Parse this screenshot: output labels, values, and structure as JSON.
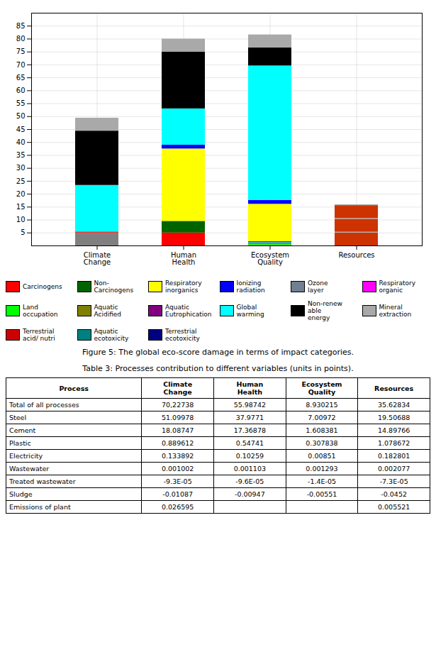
{
  "chart_data": {
    "type": "bar",
    "stacked": true,
    "categories": [
      "Climate\nChange",
      "Human\nHealth",
      "Ecosystem\nQuality",
      "Resources"
    ],
    "stacks": [
      [
        {
          "value": 5.0,
          "color": "#808080"
        },
        {
          "value": 0.4,
          "color": "#FF0000"
        },
        {
          "value": 18.0,
          "color": "#00FFFF"
        },
        {
          "value": 21.0,
          "color": "#000000"
        },
        {
          "value": 5.0,
          "color": "#A9A9A9"
        }
      ],
      [
        {
          "value": 5.0,
          "color": "#FF0000"
        },
        {
          "value": 4.5,
          "color": "#006400"
        },
        {
          "value": 28.0,
          "color": "#FFFF00"
        },
        {
          "value": 1.5,
          "color": "#0000FF"
        },
        {
          "value": 14.0,
          "color": "#00FFFF"
        },
        {
          "value": 22.0,
          "color": "#000000"
        },
        {
          "value": 5.0,
          "color": "#A9A9A9"
        }
      ],
      [
        {
          "value": 0.5,
          "color": "#00FF00"
        },
        {
          "value": 0.3,
          "color": "#808000"
        },
        {
          "value": 0.2,
          "color": "#800080"
        },
        {
          "value": 0.3,
          "color": "#00FFFF"
        },
        {
          "value": 0.3,
          "color": "#000000"
        },
        {
          "value": 14.5,
          "color": "#FFFF00"
        },
        {
          "value": 1.5,
          "color": "#0000FF"
        },
        {
          "value": 52.0,
          "color": "#00FFFF"
        },
        {
          "value": 7.0,
          "color": "#000000"
        },
        {
          "value": 5.0,
          "color": "#A9A9A9"
        }
      ],
      [
        {
          "value": 5.0,
          "color": "#CC3300"
        },
        {
          "value": 0.3,
          "color": "#A9A9A9"
        },
        {
          "value": 5.0,
          "color": "#CC3300"
        },
        {
          "value": 0.3,
          "color": "#A9A9A9"
        },
        {
          "value": 5.0,
          "color": "#CC3300"
        },
        {
          "value": 0.3,
          "color": "#A9A9A9"
        }
      ]
    ],
    "ylim": [
      0,
      90
    ],
    "yticks": [
      5,
      10,
      15,
      20,
      25,
      30,
      35,
      40,
      45,
      50,
      55,
      60,
      65,
      70,
      75,
      80,
      85
    ],
    "grid": true,
    "legend": "bottom",
    "legend_items": [
      {
        "label": "Carcinogens",
        "color": "#FF0000"
      },
      {
        "label": "Non-Carcinogens",
        "color": "#006400"
      },
      {
        "label": "Respiratory\ninorganics",
        "color": "#FFFF00"
      },
      {
        "label": "Ionizing\nradiation",
        "color": "#0000FF"
      },
      {
        "label": "Ozone\nlayer",
        "color": "#708090"
      },
      {
        "label": "Respiratory\norganic",
        "color": "#FF00FF"
      },
      {
        "label": "Land\noccupation",
        "color": "#00FF00"
      },
      {
        "label": "Aquatic\nAcidified",
        "color": "#808000"
      },
      {
        "label": "Aquatic\nEutrophication",
        "color": "#800080"
      },
      {
        "label": "Global\nwarming",
        "color": "#00FFFF"
      },
      {
        "label": "Non-renew\nable\nenergy",
        "color": "#000000"
      },
      {
        "label": "Mineral\nextraction",
        "color": "#A9A9A9"
      },
      {
        "label": "Terrestrial\nacid/ nutri",
        "color": "#CC0000"
      },
      {
        "label": "Aquatic\necotoxicity",
        "color": "#008080"
      },
      {
        "label": "Terrestrial\necotoxicity",
        "color": "#000080"
      }
    ],
    "caption": "Figure 5: The global eco-score damage in terms of impact categories.",
    "table": {
      "title": "Table 3: Processes contribution to different variables (units in points).",
      "columns": [
        "Process",
        "Climate\nChange",
        "Human\nHealth",
        "Ecosystem\nQuality",
        "Resources"
      ],
      "rows": [
        [
          "Total of all processes",
          "70,22738",
          "55.98742",
          "8.930215",
          "35.62834"
        ],
        [
          "Steel",
          "51.09978",
          "37.9771",
          "7.00972",
          "19.50688"
        ],
        [
          "Cement",
          "18.08747",
          "17.36878",
          "1.608381",
          "14.89766"
        ],
        [
          "Plastic",
          "0.889612",
          "0.54741",
          "0.307838",
          "1.078672"
        ],
        [
          "Electricity",
          "0.133892",
          "0.10259",
          "0.00851",
          "0.182801"
        ],
        [
          "Wastewater",
          "0.001002",
          "0.001103",
          "0.001293",
          "0.002077"
        ],
        [
          "Treated wastewater",
          "-9.3E-05",
          "-9.6E-05",
          "-1.4E-05",
          "-7.3E-05"
        ],
        [
          "Sludge",
          "-0.01087",
          "-0.00947",
          "-0.00551",
          "-0.0452"
        ],
        [
          "Emissions of plant",
          "0.026595",
          null,
          null,
          "0.005521"
        ]
      ]
    }
  }
}
